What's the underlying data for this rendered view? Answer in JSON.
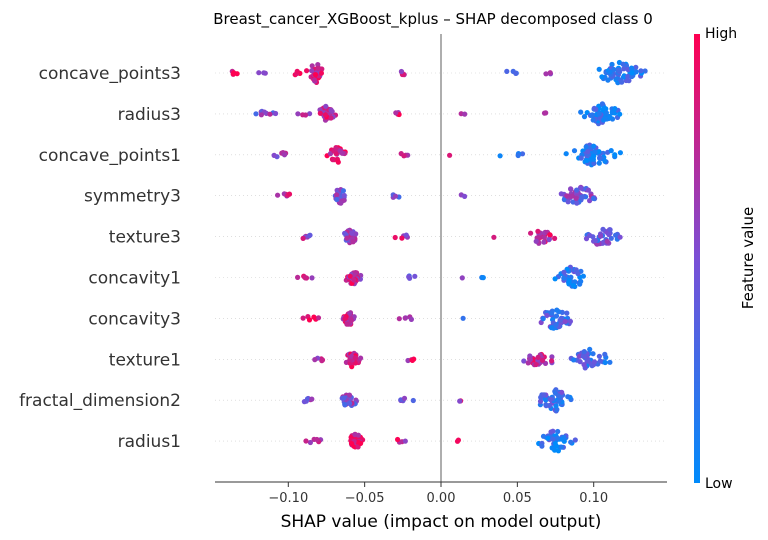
{
  "chart_data": {
    "type": "scatter",
    "title": "Breast_cancer_XGBoost_kplus – SHAP decomposed class 0",
    "xlabel": "SHAP value (impact on model output)",
    "ylabel": "",
    "xlim": [
      -0.148,
      0.148
    ],
    "xticks": [
      -0.1,
      -0.05,
      0.0,
      0.05,
      0.1
    ],
    "xtick_labels": [
      "−0.10",
      "−0.05",
      "0.00",
      "0.05",
      "0.10"
    ],
    "colorbar": {
      "label": "Feature value",
      "high_label": "High",
      "low_label": "Low",
      "high_color": "#ff0051",
      "low_color": "#008bfb"
    },
    "features": [
      {
        "name": "concave_points3",
        "clusters": [
          {
            "center": -0.082,
            "spread": 0.006,
            "n": 36,
            "color": 0.8
          },
          {
            "center": -0.135,
            "spread": 0.006,
            "n": 5,
            "color": 0.95
          },
          {
            "center": -0.118,
            "spread": 0.005,
            "n": 3,
            "color": 0.6
          },
          {
            "center": -0.095,
            "spread": 0.004,
            "n": 4,
            "color": 0.85
          },
          {
            "center": -0.025,
            "spread": 0.003,
            "n": 5,
            "color": 0.7
          },
          {
            "center": 0.045,
            "spread": 0.012,
            "n": 4,
            "color": 0.4
          },
          {
            "center": 0.07,
            "spread": 0.006,
            "n": 3,
            "color": 0.7
          },
          {
            "center": 0.117,
            "spread": 0.016,
            "n": 70,
            "color": 0.15
          }
        ]
      },
      {
        "name": "radius3",
        "clusters": [
          {
            "center": -0.075,
            "spread": 0.006,
            "n": 28,
            "color": 0.8
          },
          {
            "center": -0.115,
            "spread": 0.011,
            "n": 9,
            "color": 0.5
          },
          {
            "center": -0.09,
            "spread": 0.004,
            "n": 4,
            "color": 0.7
          },
          {
            "center": -0.028,
            "spread": 0.004,
            "n": 4,
            "color": 0.85
          },
          {
            "center": 0.015,
            "spread": 0.003,
            "n": 2,
            "color": 0.8
          },
          {
            "center": 0.07,
            "spread": 0.004,
            "n": 2,
            "color": 0.5
          },
          {
            "center": 0.105,
            "spread": 0.012,
            "n": 60,
            "color": 0.15
          }
        ]
      },
      {
        "name": "concave_points1",
        "clusters": [
          {
            "center": -0.068,
            "spread": 0.006,
            "n": 30,
            "color": 0.85
          },
          {
            "center": -0.105,
            "spread": 0.007,
            "n": 7,
            "color": 0.6
          },
          {
            "center": -0.025,
            "spread": 0.004,
            "n": 4,
            "color": 0.7
          },
          {
            "center": 0.005,
            "spread": 0.002,
            "n": 1,
            "color": 0.7
          },
          {
            "center": 0.045,
            "spread": 0.012,
            "n": 4,
            "color": 0.2
          },
          {
            "center": 0.1,
            "spread": 0.016,
            "n": 60,
            "color": 0.15
          }
        ]
      },
      {
        "name": "symmetry3",
        "clusters": [
          {
            "center": -0.066,
            "spread": 0.004,
            "n": 30,
            "color": 0.5
          },
          {
            "center": -0.102,
            "spread": 0.008,
            "n": 6,
            "color": 0.85
          },
          {
            "center": -0.03,
            "spread": 0.005,
            "n": 4,
            "color": 0.4
          },
          {
            "center": 0.015,
            "spread": 0.003,
            "n": 2,
            "color": 0.6
          },
          {
            "center": 0.09,
            "spread": 0.012,
            "n": 45,
            "color": 0.45
          }
        ]
      },
      {
        "name": "texture3",
        "clusters": [
          {
            "center": -0.06,
            "spread": 0.005,
            "n": 30,
            "color": 0.6
          },
          {
            "center": -0.088,
            "spread": 0.007,
            "n": 6,
            "color": 0.6
          },
          {
            "center": -0.025,
            "spread": 0.007,
            "n": 5,
            "color": 0.7
          },
          {
            "center": 0.035,
            "spread": 0.002,
            "n": 1,
            "color": 0.7
          },
          {
            "center": 0.065,
            "spread": 0.01,
            "n": 25,
            "color": 0.75
          },
          {
            "center": 0.105,
            "spread": 0.015,
            "n": 35,
            "color": 0.4
          }
        ]
      },
      {
        "name": "concavity1",
        "clusters": [
          {
            "center": -0.058,
            "spread": 0.005,
            "n": 28,
            "color": 0.75
          },
          {
            "center": -0.088,
            "spread": 0.006,
            "n": 6,
            "color": 0.85
          },
          {
            "center": -0.02,
            "spread": 0.005,
            "n": 4,
            "color": 0.5
          },
          {
            "center": 0.015,
            "spread": 0.002,
            "n": 1,
            "color": 0.7
          },
          {
            "center": 0.028,
            "spread": 0.003,
            "n": 2,
            "color": 0.1
          },
          {
            "center": 0.085,
            "spread": 0.011,
            "n": 40,
            "color": 0.2
          }
        ]
      },
      {
        "name": "concavity3",
        "clusters": [
          {
            "center": -0.06,
            "spread": 0.005,
            "n": 28,
            "color": 0.8
          },
          {
            "center": -0.085,
            "spread": 0.007,
            "n": 6,
            "color": 0.8
          },
          {
            "center": -0.022,
            "spread": 0.006,
            "n": 5,
            "color": 0.5
          },
          {
            "center": 0.015,
            "spread": 0.002,
            "n": 1,
            "color": 0.3
          },
          {
            "center": 0.075,
            "spread": 0.012,
            "n": 40,
            "color": 0.3
          }
        ]
      },
      {
        "name": "texture1",
        "clusters": [
          {
            "center": -0.058,
            "spread": 0.005,
            "n": 28,
            "color": 0.8
          },
          {
            "center": -0.08,
            "spread": 0.006,
            "n": 5,
            "color": 0.7
          },
          {
            "center": -0.02,
            "spread": 0.006,
            "n": 4,
            "color": 0.8
          },
          {
            "center": 0.065,
            "spread": 0.012,
            "n": 25,
            "color": 0.75
          },
          {
            "center": 0.098,
            "spread": 0.012,
            "n": 40,
            "color": 0.3
          }
        ]
      },
      {
        "name": "fractal_dimension2",
        "clusters": [
          {
            "center": -0.06,
            "spread": 0.005,
            "n": 30,
            "color": 0.5
          },
          {
            "center": -0.088,
            "spread": 0.006,
            "n": 6,
            "color": 0.5
          },
          {
            "center": -0.025,
            "spread": 0.006,
            "n": 5,
            "color": 0.5
          },
          {
            "center": 0.012,
            "spread": 0.002,
            "n": 2,
            "color": 0.7
          },
          {
            "center": 0.075,
            "spread": 0.012,
            "n": 45,
            "color": 0.3
          }
        ]
      },
      {
        "name": "radius1",
        "clusters": [
          {
            "center": -0.056,
            "spread": 0.005,
            "n": 30,
            "color": 0.9
          },
          {
            "center": -0.082,
            "spread": 0.007,
            "n": 6,
            "color": 0.6
          },
          {
            "center": -0.027,
            "spread": 0.005,
            "n": 5,
            "color": 0.8
          },
          {
            "center": 0.012,
            "spread": 0.002,
            "n": 2,
            "color": 0.75
          },
          {
            "center": 0.075,
            "spread": 0.012,
            "n": 40,
            "color": 0.2
          }
        ]
      }
    ]
  }
}
